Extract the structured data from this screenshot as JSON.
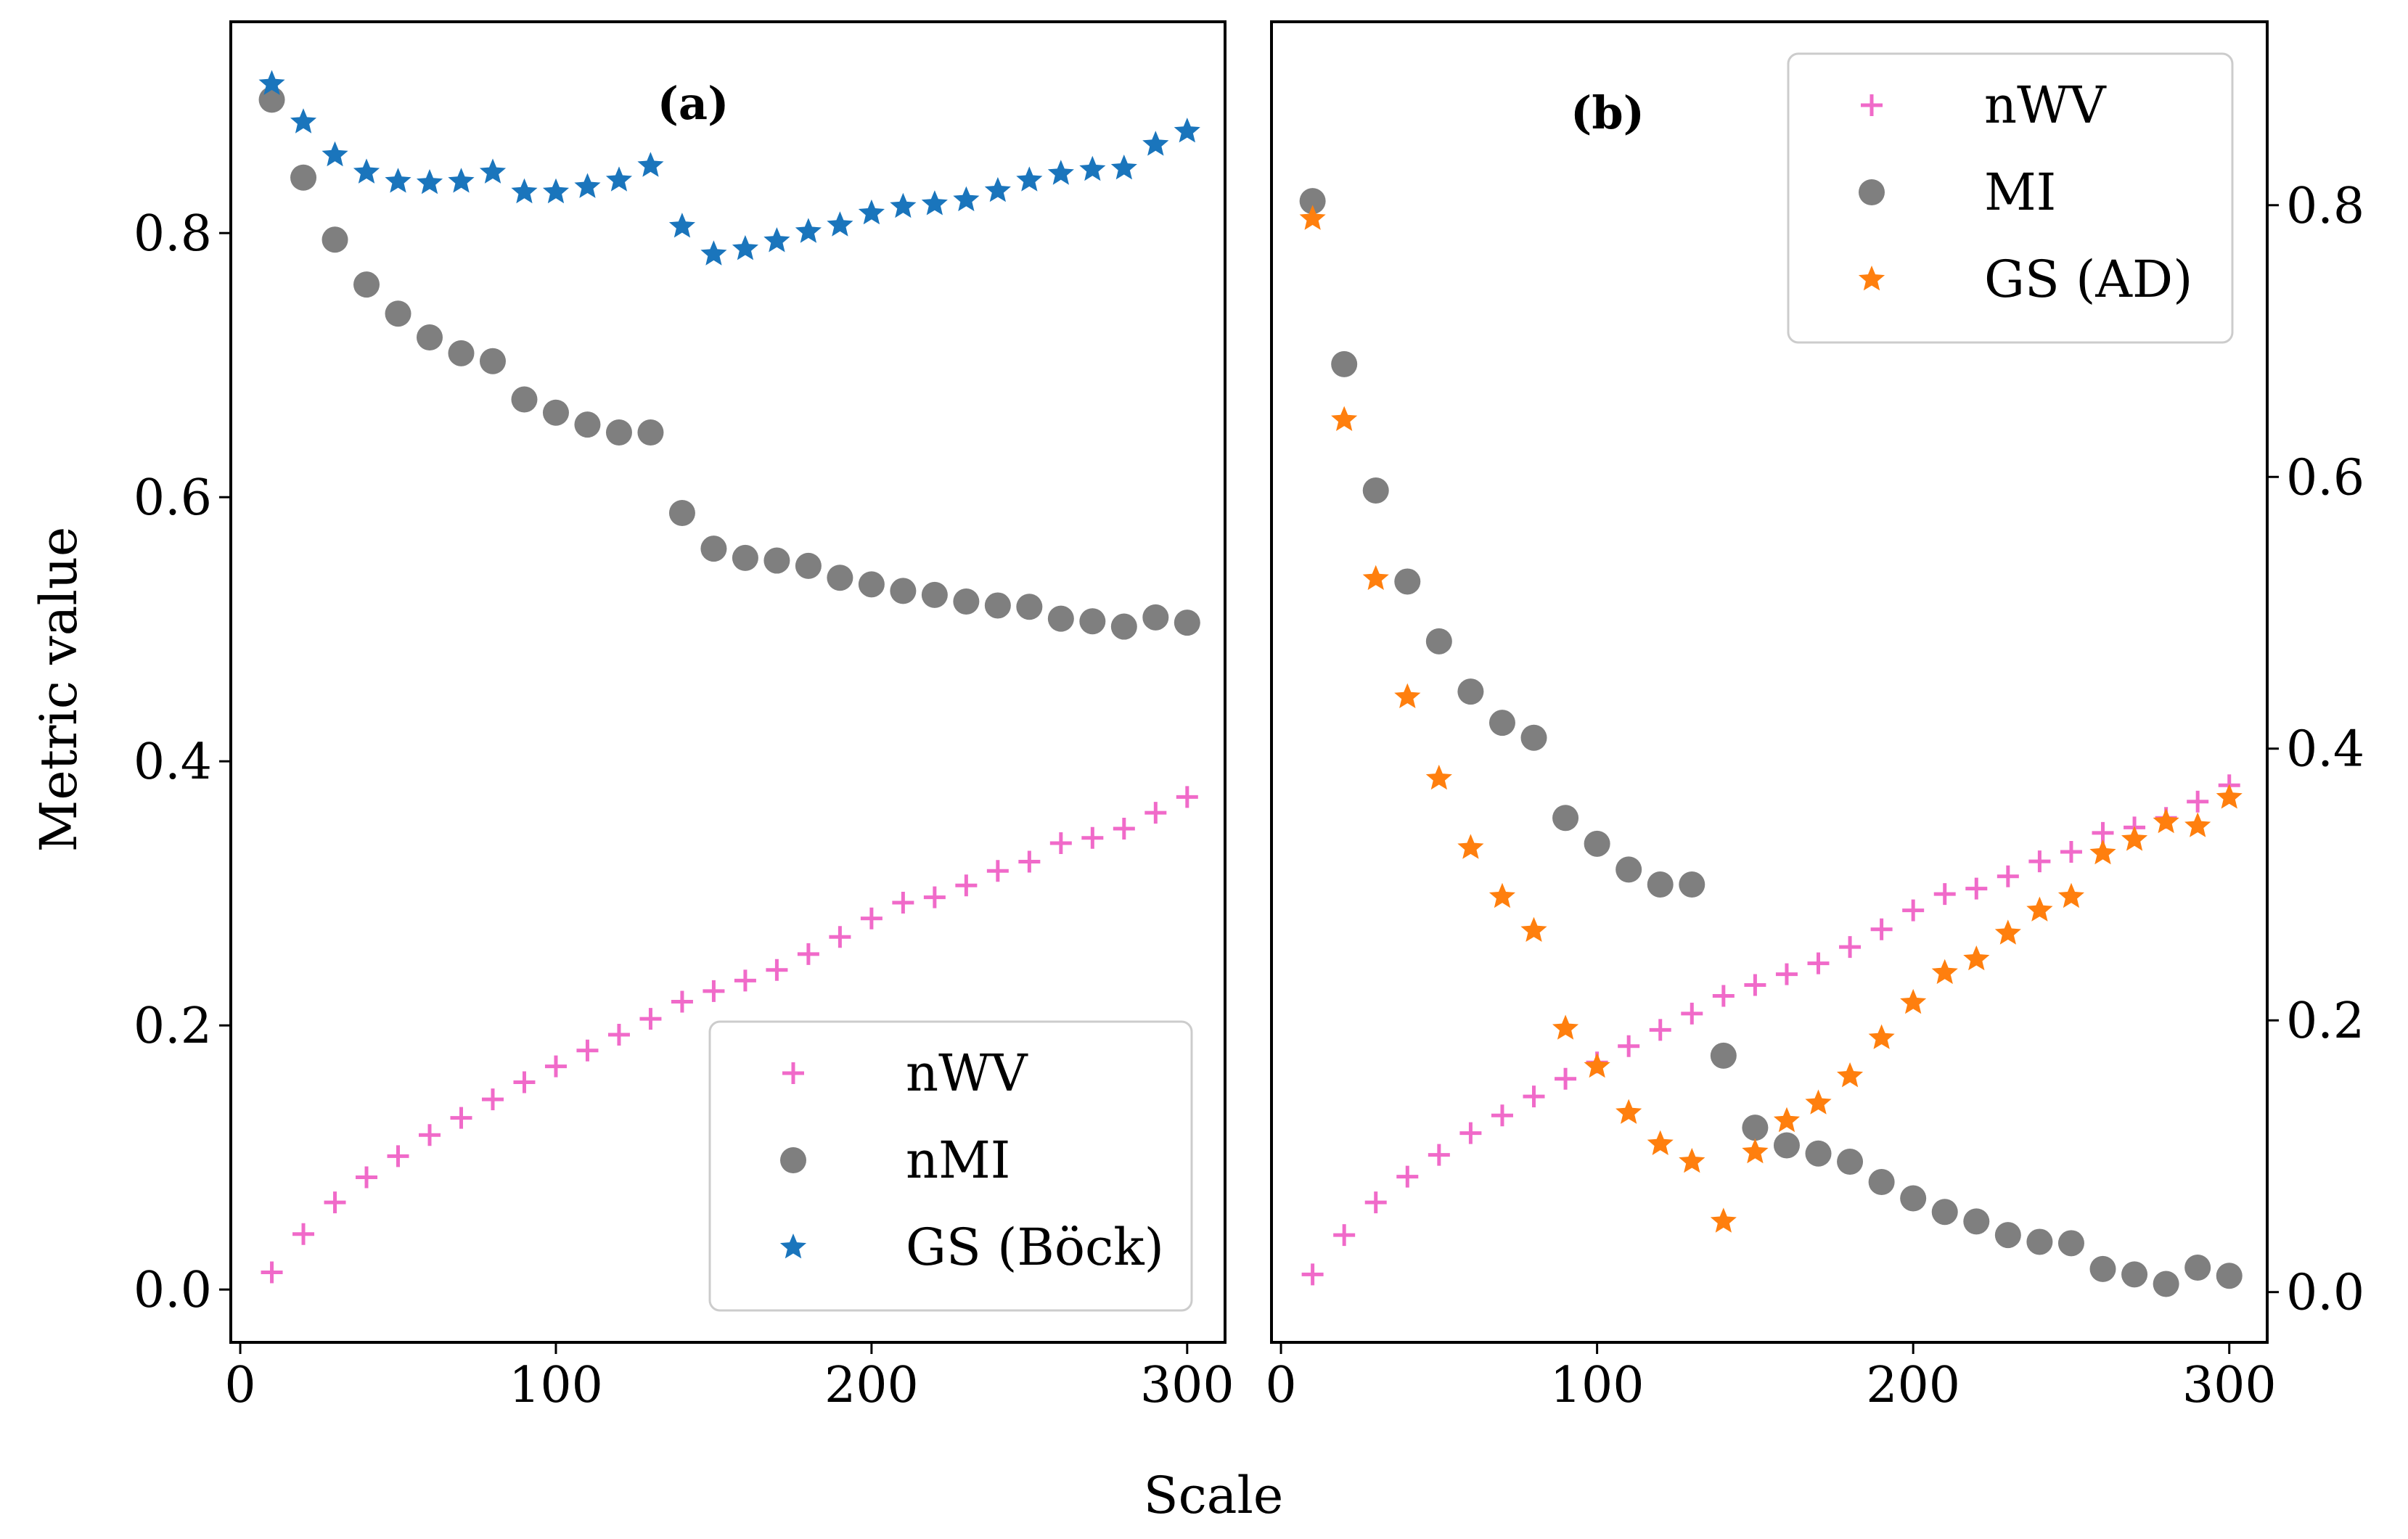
{
  "chart_data": [
    {
      "type": "scatter",
      "panel": "a",
      "title": "(a)",
      "xlabel": "Scale",
      "ylabel": "Metric value",
      "xlim": [
        -3,
        312
      ],
      "ylim": [
        -0.04,
        0.96
      ],
      "xticks": [
        0,
        100,
        200,
        300
      ],
      "xtick_labels": [
        "0",
        "100",
        "200",
        "300"
      ],
      "yticks": [
        0.0,
        0.2,
        0.4,
        0.6,
        0.8
      ],
      "ytick_labels": [
        "0.0",
        "0.2",
        "0.4",
        "0.6",
        "0.8"
      ],
      "ytick_side": "left",
      "legend_position": "lower-right",
      "x": [
        10,
        20,
        30,
        40,
        50,
        60,
        70,
        80,
        90,
        100,
        110,
        120,
        130,
        140,
        150,
        160,
        170,
        180,
        190,
        200,
        210,
        220,
        230,
        240,
        250,
        260,
        270,
        280,
        290,
        300
      ],
      "series": [
        {
          "name": "nWV",
          "marker": "plus",
          "color": "#f06ac9",
          "values": [
            0.013,
            0.042,
            0.066,
            0.085,
            0.101,
            0.117,
            0.13,
            0.144,
            0.157,
            0.169,
            0.181,
            0.193,
            0.205,
            0.218,
            0.226,
            0.234,
            0.242,
            0.254,
            0.267,
            0.281,
            0.293,
            0.297,
            0.306,
            0.317,
            0.324,
            0.338,
            0.342,
            0.349,
            0.361,
            0.373
          ]
        },
        {
          "name": "nMI",
          "marker": "circle",
          "color": "#7f7f7f",
          "values": [
            0.901,
            0.842,
            0.795,
            0.761,
            0.739,
            0.721,
            0.709,
            0.703,
            0.674,
            0.664,
            0.655,
            0.649,
            0.649,
            0.588,
            0.561,
            0.554,
            0.552,
            0.548,
            0.539,
            0.534,
            0.529,
            0.526,
            0.521,
            0.518,
            0.517,
            0.508,
            0.506,
            0.502,
            0.509,
            0.505
          ]
        },
        {
          "name": "GS (Böck)",
          "marker": "star",
          "color": "#1a75bc",
          "values": [
            0.913,
            0.884,
            0.859,
            0.846,
            0.839,
            0.838,
            0.839,
            0.846,
            0.831,
            0.831,
            0.835,
            0.84,
            0.851,
            0.805,
            0.784,
            0.788,
            0.794,
            0.801,
            0.806,
            0.815,
            0.82,
            0.822,
            0.825,
            0.832,
            0.84,
            0.845,
            0.848,
            0.849,
            0.867,
            0.877
          ]
        }
      ]
    },
    {
      "type": "scatter",
      "panel": "b",
      "title": "(b)",
      "xlabel": "Scale",
      "ylabel": "",
      "xlim": [
        -3,
        312
      ],
      "ylim": [
        -0.037,
        0.935
      ],
      "xticks": [
        0,
        100,
        200,
        300
      ],
      "xtick_labels": [
        "0",
        "100",
        "200",
        "300"
      ],
      "yticks": [
        0.0,
        0.2,
        0.4,
        0.6,
        0.8
      ],
      "ytick_labels": [
        "0.0",
        "0.2",
        "0.4",
        "0.6",
        "0.8"
      ],
      "ytick_side": "right",
      "legend_position": "upper-right",
      "x": [
        10,
        20,
        30,
        40,
        50,
        60,
        70,
        80,
        90,
        100,
        110,
        120,
        130,
        140,
        150,
        160,
        170,
        180,
        190,
        200,
        210,
        220,
        230,
        240,
        250,
        260,
        270,
        280,
        290,
        300
      ],
      "series": [
        {
          "name": "nWV",
          "marker": "plus",
          "color": "#f06ac9",
          "values": [
            0.013,
            0.042,
            0.066,
            0.085,
            0.101,
            0.117,
            0.13,
            0.144,
            0.157,
            0.169,
            0.181,
            0.193,
            0.205,
            0.218,
            0.226,
            0.234,
            0.242,
            0.254,
            0.267,
            0.281,
            0.293,
            0.297,
            0.306,
            0.317,
            0.324,
            0.338,
            0.342,
            0.349,
            0.361,
            0.373
          ]
        },
        {
          "name": "MI",
          "marker": "circle",
          "color": "#7f7f7f",
          "values": [
            0.803,
            0.683,
            0.59,
            0.523,
            0.479,
            0.442,
            0.419,
            0.408,
            0.349,
            0.33,
            0.311,
            0.3,
            0.3,
            0.174,
            0.121,
            0.108,
            0.102,
            0.096,
            0.081,
            0.069,
            0.059,
            0.052,
            0.042,
            0.037,
            0.036,
            0.017,
            0.013,
            0.006,
            0.018,
            0.012
          ]
        },
        {
          "name": "GS (AD)",
          "marker": "star",
          "color": "#ff7f0e",
          "values": [
            0.79,
            0.642,
            0.525,
            0.438,
            0.378,
            0.327,
            0.291,
            0.266,
            0.194,
            0.166,
            0.132,
            0.109,
            0.096,
            0.052,
            0.103,
            0.126,
            0.139,
            0.159,
            0.187,
            0.213,
            0.235,
            0.245,
            0.264,
            0.281,
            0.291,
            0.323,
            0.333,
            0.346,
            0.343,
            0.364
          ]
        }
      ]
    }
  ]
}
